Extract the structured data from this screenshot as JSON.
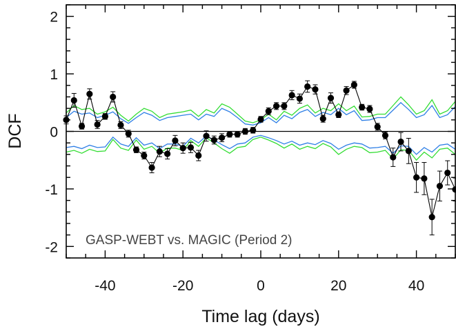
{
  "chart_data": {
    "type": "scatter",
    "title": "",
    "xlabel": "Time lag (days)",
    "ylabel": "DCF",
    "xlim": [
      -50,
      50
    ],
    "ylim": [
      -2.2,
      2.2
    ],
    "xticks": [
      -40,
      -20,
      0,
      20,
      40
    ],
    "yticks": [
      -2,
      -1,
      0,
      1,
      2
    ],
    "annotation": "GASP-WEBT vs. MAGIC (Period 2)",
    "zero_line": true,
    "grid": false,
    "colors": {
      "data": "#000000",
      "band_green": "#33dd33",
      "band_blue": "#2e7fe6",
      "zero_line": "#000000"
    },
    "series": [
      {
        "points": [
          {
            "x": -50,
            "y": 0.2,
            "err": 0.07
          },
          {
            "x": -48,
            "y": 0.54,
            "err": 0.12
          },
          {
            "x": -46,
            "y": 0.09,
            "err": 0.05
          },
          {
            "x": -44,
            "y": 0.65,
            "err": 0.09
          },
          {
            "x": -42,
            "y": 0.12,
            "err": 0.07
          },
          {
            "x": -40,
            "y": 0.26,
            "err": 0.05
          },
          {
            "x": -38,
            "y": 0.6,
            "err": 0.09
          },
          {
            "x": -36,
            "y": 0.11,
            "err": 0.06
          },
          {
            "x": -34,
            "y": -0.04,
            "err": 0.06
          },
          {
            "x": -32,
            "y": -0.32,
            "err": 0.05
          },
          {
            "x": -30,
            "y": -0.42,
            "err": 0.06
          },
          {
            "x": -28,
            "y": -0.63,
            "err": 0.09
          },
          {
            "x": -26,
            "y": -0.35,
            "err": 0.09
          },
          {
            "x": -24,
            "y": -0.39,
            "err": 0.09
          },
          {
            "x": -22,
            "y": -0.16,
            "err": 0.09
          },
          {
            "x": -20,
            "y": -0.29,
            "err": 0.09
          },
          {
            "x": -18,
            "y": -0.28,
            "err": 0.09
          },
          {
            "x": -16,
            "y": -0.42,
            "err": 0.09
          },
          {
            "x": -14,
            "y": -0.08,
            "err": 0.09
          },
          {
            "x": -12,
            "y": -0.15,
            "err": 0.07
          },
          {
            "x": -10,
            "y": -0.11,
            "err": 0.07
          },
          {
            "x": -8,
            "y": -0.05,
            "err": 0.05
          },
          {
            "x": -6,
            "y": -0.05,
            "err": 0.05
          },
          {
            "x": -4,
            "y": 0.0,
            "err": 0.05
          },
          {
            "x": -2,
            "y": 0.02,
            "err": 0.05
          },
          {
            "x": 0,
            "y": 0.21,
            "err": 0.05
          },
          {
            "x": 2,
            "y": 0.35,
            "err": 0.06
          },
          {
            "x": 4,
            "y": 0.44,
            "err": 0.06
          },
          {
            "x": 6,
            "y": 0.44,
            "err": 0.06
          },
          {
            "x": 8,
            "y": 0.63,
            "err": 0.08
          },
          {
            "x": 10,
            "y": 0.57,
            "err": 0.08
          },
          {
            "x": 12,
            "y": 0.78,
            "err": 0.1
          },
          {
            "x": 14,
            "y": 0.73,
            "err": 0.08
          },
          {
            "x": 16,
            "y": 0.22,
            "err": 0.06
          },
          {
            "x": 18,
            "y": 0.58,
            "err": 0.09
          },
          {
            "x": 20,
            "y": 0.29,
            "err": 0.05
          },
          {
            "x": 22,
            "y": 0.71,
            "err": 0.07
          },
          {
            "x": 24,
            "y": 0.81,
            "err": 0.06
          },
          {
            "x": 26,
            "y": 0.42,
            "err": 0.05
          },
          {
            "x": 28,
            "y": 0.39,
            "err": 0.06
          },
          {
            "x": 30,
            "y": 0.08,
            "err": 0.06
          },
          {
            "x": 32,
            "y": -0.07,
            "err": 0.06
          },
          {
            "x": 34,
            "y": -0.45,
            "err": 0.16
          },
          {
            "x": 36,
            "y": -0.18,
            "err": 0.16
          },
          {
            "x": 38,
            "y": -0.34,
            "err": 0.22
          },
          {
            "x": 40,
            "y": -0.8,
            "err": 0.26
          },
          {
            "x": 42,
            "y": -0.82,
            "err": 0.28
          },
          {
            "x": 44,
            "y": -1.49,
            "err": 0.31
          },
          {
            "x": 46,
            "y": -0.95,
            "err": 0.26
          },
          {
            "x": 48,
            "y": -0.72,
            "err": 0.21
          },
          {
            "x": 50,
            "y": -1.01,
            "err": 0.2
          }
        ]
      }
    ],
    "bands": {
      "x": [
        -50,
        -48,
        -46,
        -44,
        -42,
        -40,
        -38,
        -36,
        -34,
        -32,
        -30,
        -28,
        -26,
        -24,
        -22,
        -20,
        -18,
        -16,
        -14,
        -12,
        -10,
        -8,
        -6,
        -4,
        -2,
        0,
        2,
        4,
        6,
        8,
        10,
        12,
        14,
        16,
        18,
        20,
        22,
        24,
        26,
        28,
        30,
        32,
        34,
        36,
        38,
        40,
        42,
        44,
        46,
        48,
        50
      ],
      "green_upper": [
        0.32,
        0.45,
        0.38,
        0.4,
        0.3,
        0.34,
        0.42,
        0.28,
        0.18,
        0.3,
        0.4,
        0.35,
        0.24,
        0.3,
        0.32,
        0.34,
        0.37,
        0.26,
        0.38,
        0.32,
        0.48,
        0.42,
        0.3,
        0.18,
        0.15,
        0.2,
        0.3,
        0.2,
        0.35,
        0.28,
        0.4,
        0.46,
        0.32,
        0.4,
        0.36,
        0.48,
        0.36,
        0.44,
        0.25,
        0.26,
        0.3,
        0.3,
        0.45,
        0.6,
        0.46,
        0.3,
        0.36,
        0.55,
        0.3,
        0.36,
        0.52
      ],
      "blue_upper": [
        0.24,
        0.35,
        0.3,
        0.32,
        0.24,
        0.28,
        0.34,
        0.22,
        0.14,
        0.24,
        0.33,
        0.28,
        0.19,
        0.24,
        0.26,
        0.28,
        0.3,
        0.2,
        0.3,
        0.26,
        0.4,
        0.34,
        0.24,
        0.13,
        0.11,
        0.15,
        0.24,
        0.15,
        0.28,
        0.22,
        0.33,
        0.38,
        0.26,
        0.33,
        0.29,
        0.4,
        0.29,
        0.36,
        0.19,
        0.2,
        0.24,
        0.24,
        0.37,
        0.5,
        0.38,
        0.24,
        0.29,
        0.45,
        0.24,
        0.29,
        0.43
      ],
      "blue_lower": [
        -0.28,
        -0.26,
        -0.3,
        -0.24,
        -0.28,
        -0.27,
        -0.1,
        -0.22,
        -0.26,
        -0.11,
        -0.24,
        -0.2,
        -0.3,
        -0.22,
        -0.22,
        -0.26,
        -0.12,
        -0.2,
        -0.08,
        -0.15,
        -0.23,
        -0.3,
        -0.22,
        -0.2,
        -0.1,
        -0.07,
        -0.11,
        -0.16,
        -0.22,
        -0.17,
        -0.24,
        -0.2,
        -0.23,
        -0.16,
        -0.21,
        -0.31,
        -0.24,
        -0.2,
        -0.22,
        -0.29,
        -0.28,
        -0.26,
        -0.38,
        -0.25,
        -0.26,
        -0.4,
        -0.28,
        -0.36,
        -0.24,
        -0.22,
        -0.31
      ],
      "green_lower": [
        -0.36,
        -0.33,
        -0.38,
        -0.31,
        -0.35,
        -0.34,
        -0.14,
        -0.29,
        -0.33,
        -0.15,
        -0.31,
        -0.26,
        -0.38,
        -0.29,
        -0.29,
        -0.33,
        -0.16,
        -0.26,
        -0.11,
        -0.2,
        -0.3,
        -0.38,
        -0.28,
        -0.26,
        -0.14,
        -0.1,
        -0.15,
        -0.21,
        -0.29,
        -0.22,
        -0.31,
        -0.26,
        -0.3,
        -0.21,
        -0.27,
        -0.4,
        -0.31,
        -0.26,
        -0.28,
        -0.37,
        -0.36,
        -0.33,
        -0.48,
        -0.32,
        -0.33,
        -0.5,
        -0.36,
        -0.46,
        -0.31,
        -0.29,
        -0.4
      ]
    }
  }
}
